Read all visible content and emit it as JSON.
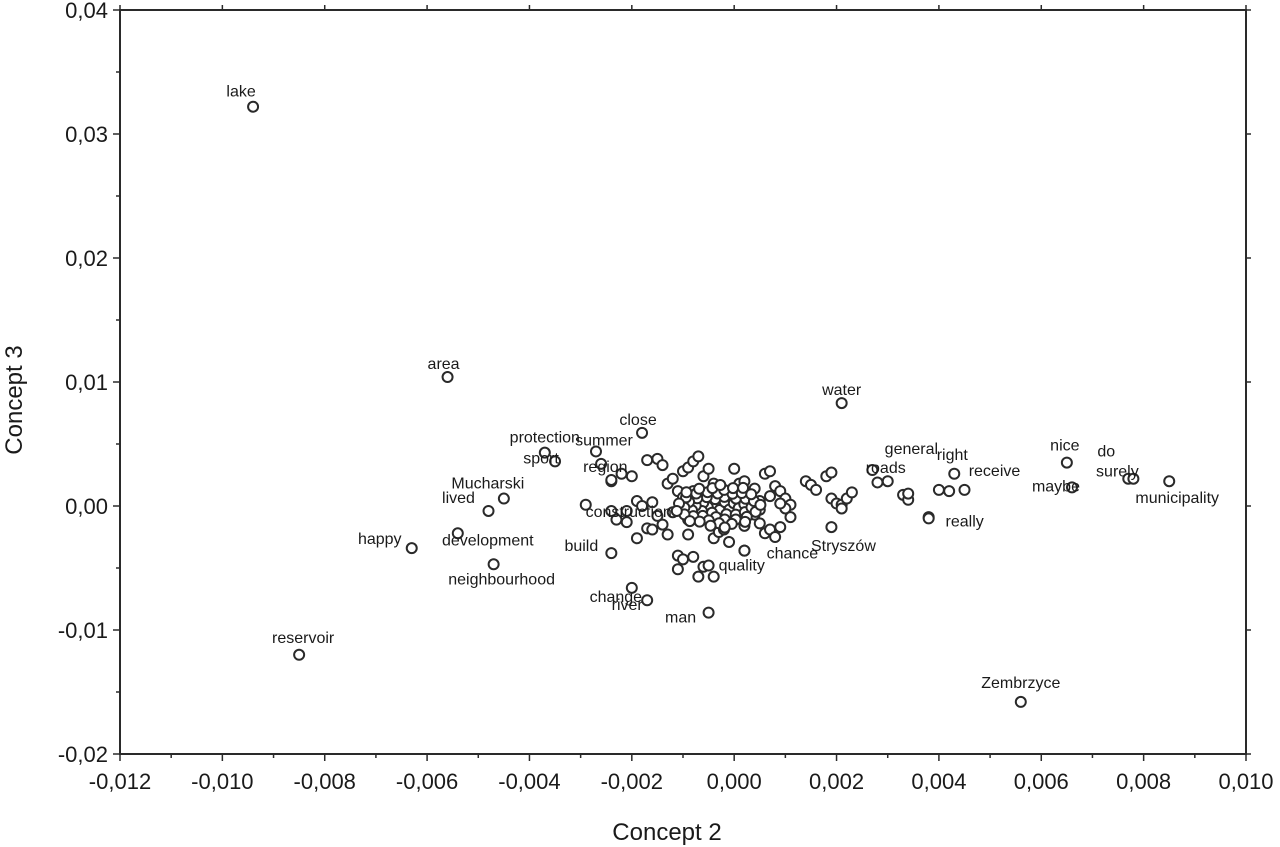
{
  "chart_data": {
    "type": "scatter",
    "title": "",
    "xlabel": "Concept 2",
    "ylabel": "Concept 3",
    "xlim": [
      -0.012,
      0.01
    ],
    "ylim": [
      -0.02,
      0.04
    ],
    "grid": false,
    "x_ticks": [
      -0.012,
      -0.01,
      -0.008,
      -0.006,
      -0.004,
      -0.002,
      0.0,
      0.002,
      0.004,
      0.006,
      0.008,
      0.01
    ],
    "x_tick_labels": [
      "-0,012",
      "-0,010",
      "-0,008",
      "-0,006",
      "-0,004",
      "-0,002",
      "0,000",
      "0,002",
      "0,004",
      "0,006",
      "0,008",
      "0,010"
    ],
    "y_ticks": [
      -0.02,
      -0.01,
      0.0,
      0.01,
      0.02,
      0.03,
      0.04
    ],
    "y_tick_labels": [
      "-0,02",
      "-0,01",
      "0,00",
      "0,01",
      "0,02",
      "0,03",
      "0,04"
    ],
    "labeled_points": [
      {
        "label": "lake",
        "x": -0.0094,
        "y": 0.0322
      },
      {
        "label": "area",
        "x": -0.0056,
        "y": 0.0104
      },
      {
        "label": "water",
        "x": 0.0021,
        "y": 0.0083
      },
      {
        "label": "close",
        "x": -0.0018,
        "y": 0.0059
      },
      {
        "label": "protection",
        "x": -0.0037,
        "y": 0.0043
      },
      {
        "label": "summer",
        "x": -0.0027,
        "y": 0.0044
      },
      {
        "label": "sport",
        "x": -0.0035,
        "y": 0.0036
      },
      {
        "label": "Mucharski",
        "x": -0.0045,
        "y": 0.0006
      },
      {
        "label": "lived",
        "x": -0.0048,
        "y": -0.0004
      },
      {
        "label": "region",
        "x": -0.0024,
        "y": 0.0021
      },
      {
        "label": "construction",
        "x": -0.0021,
        "y": -0.0004
      },
      {
        "label": "development",
        "x": -0.0054,
        "y": -0.0022
      },
      {
        "label": "happy",
        "x": -0.0063,
        "y": -0.0034
      },
      {
        "label": "build",
        "x": -0.0024,
        "y": -0.0038
      },
      {
        "label": "neighbourhood",
        "x": -0.0047,
        "y": -0.0047
      },
      {
        "label": "change",
        "x": -0.002,
        "y": -0.0066
      },
      {
        "label": "river",
        "x": -0.0017,
        "y": -0.0076
      },
      {
        "label": "man",
        "x": -0.0005,
        "y": -0.0086
      },
      {
        "label": "quality",
        "x": -0.0004,
        "y": -0.0057
      },
      {
        "label": "chance",
        "x": 0.0002,
        "y": -0.0036
      },
      {
        "label": "Stryszów",
        "x": 0.0019,
        "y": -0.0017
      },
      {
        "label": "general",
        "x": 0.0027,
        "y": 0.0029
      },
      {
        "label": "roads",
        "x": 0.003,
        "y": 0.002
      },
      {
        "label": "right",
        "x": 0.0043,
        "y": 0.0026
      },
      {
        "label": "receive",
        "x": 0.0045,
        "y": 0.0013
      },
      {
        "label": "really",
        "x": 0.0038,
        "y": -0.001
      },
      {
        "label": "nice",
        "x": 0.0065,
        "y": 0.0035
      },
      {
        "label": "maybe",
        "x": 0.0066,
        "y": 0.0015
      },
      {
        "label": "do",
        "x": 0.0077,
        "y": 0.0022
      },
      {
        "label": "surely",
        "x": 0.0078,
        "y": 0.0022
      },
      {
        "label": "municipality",
        "x": 0.0085,
        "y": 0.002
      },
      {
        "label": "reservoir",
        "x": -0.0085,
        "y": -0.012
      },
      {
        "label": "Zembrzyce",
        "x": 0.0056,
        "y": -0.0158
      }
    ],
    "unlabeled_points": [
      [
        -0.0026,
        0.0034
      ],
      [
        -0.0024,
        0.002
      ],
      [
        -0.0022,
        0.0026
      ],
      [
        -0.002,
        0.0024
      ],
      [
        -0.0019,
        0.0004
      ],
      [
        -0.0018,
        0.0
      ],
      [
        -0.0017,
        0.0037
      ],
      [
        -0.0016,
        0.0003
      ],
      [
        -0.0015,
        0.0038
      ],
      [
        -0.0014,
        0.0033
      ],
      [
        -0.0013,
        0.0018
      ],
      [
        -0.0012,
        0.0022
      ],
      [
        -0.0011,
        0.0012
      ],
      [
        -0.001,
        0.0028
      ],
      [
        -0.0009,
        0.0031
      ],
      [
        -0.0008,
        0.0036
      ],
      [
        -0.0007,
        0.004
      ],
      [
        -0.0006,
        0.0024
      ],
      [
        -0.0005,
        0.003
      ],
      [
        -0.0004,
        0.0018
      ],
      [
        -0.0003,
        0.0012
      ],
      [
        -0.0002,
        0.0006
      ],
      [
        -0.0001,
        0.0002
      ],
      [
        0.0,
        0.003
      ],
      [
        0.0001,
        0.0018
      ],
      [
        0.0002,
        0.002
      ],
      [
        0.0003,
        0.001
      ],
      [
        0.0004,
        0.0014
      ],
      [
        0.0005,
        0.0004
      ],
      [
        0.0006,
        0.0026
      ],
      [
        0.0007,
        0.0028
      ],
      [
        0.0008,
        0.0016
      ],
      [
        0.0009,
        0.0012
      ],
      [
        0.001,
        0.0006
      ],
      [
        0.0011,
        0.0001
      ],
      [
        0.0014,
        0.002
      ],
      [
        0.0015,
        0.0017
      ],
      [
        0.0016,
        0.0013
      ],
      [
        0.0018,
        0.0024
      ],
      [
        0.0019,
        0.0027
      ],
      [
        0.0019,
        0.0006
      ],
      [
        0.002,
        0.0002
      ],
      [
        0.0021,
        0.0001
      ],
      [
        0.0022,
        0.0006
      ],
      [
        0.0023,
        0.0011
      ],
      [
        0.0028,
        0.0019
      ],
      [
        0.0033,
        0.0009
      ],
      [
        0.0034,
        0.0005
      ],
      [
        0.0034,
        0.001
      ],
      [
        0.004,
        0.0013
      ],
      [
        0.0042,
        0.0012
      ],
      [
        -0.0023,
        -0.0011
      ],
      [
        -0.0021,
        -0.0013
      ],
      [
        -0.0019,
        -0.0026
      ],
      [
        -0.0017,
        -0.0018
      ],
      [
        -0.0016,
        -0.0019
      ],
      [
        -0.0014,
        -0.0015
      ],
      [
        -0.0013,
        -0.0023
      ],
      [
        -0.0011,
        -0.004
      ],
      [
        -0.0011,
        -0.0051
      ],
      [
        -0.001,
        -0.0043
      ],
      [
        -0.0009,
        -0.0023
      ],
      [
        -0.0008,
        -0.0041
      ],
      [
        -0.0007,
        -0.0057
      ],
      [
        -0.0006,
        -0.0049
      ],
      [
        -0.0005,
        -0.0048
      ],
      [
        -0.0004,
        -0.0026
      ],
      [
        -0.0003,
        -0.0021
      ],
      [
        -0.0002,
        -0.0019
      ],
      [
        -0.0001,
        -0.0029
      ],
      [
        0.0001,
        -0.001
      ],
      [
        0.0002,
        -0.0016
      ],
      [
        0.0002,
        -0.0036
      ],
      [
        0.0004,
        -0.0007
      ],
      [
        0.0005,
        -0.0014
      ],
      [
        0.0006,
        -0.0022
      ],
      [
        0.0007,
        -0.0019
      ],
      [
        0.0008,
        -0.0025
      ],
      [
        0.0009,
        -0.0017
      ],
      [
        0.001,
        -0.0002
      ],
      [
        0.0011,
        -0.0009
      ],
      [
        0.0021,
        -0.0002
      ],
      [
        0.0038,
        -0.0009
      ],
      [
        -0.0029,
        0.0001
      ],
      [
        -0.0024,
        -0.0004
      ],
      [
        -0.0015,
        -0.0008
      ],
      [
        -0.0012,
        -0.0005
      ],
      [
        -0.0009,
        0.0003
      ],
      [
        -0.0008,
        -0.0003
      ],
      [
        -0.0007,
        0.0005
      ],
      [
        -0.0006,
        -0.0006
      ],
      [
        -0.0005,
        0.0002
      ],
      [
        -0.0004,
        -0.0002
      ],
      [
        -0.0003,
        0.0004
      ],
      [
        -0.0002,
        -0.0004
      ],
      [
        -0.0001,
        0.0
      ],
      [
        0.0,
        0.0003
      ],
      [
        0.0001,
        -0.0003
      ],
      [
        -0.0004,
        0.0009
      ],
      [
        -0.0006,
        0.001
      ],
      [
        -0.0008,
        0.0012
      ],
      [
        -0.0003,
        -0.001
      ],
      [
        -0.0005,
        -0.0012
      ],
      [
        -0.0007,
        -0.0009
      ],
      [
        -0.0002,
        0.0008
      ],
      [
        0.0,
        -0.0006
      ],
      [
        -0.0009,
        -0.0011
      ],
      [
        -0.001,
        0.0007
      ],
      [
        0.0009,
        0.0002
      ],
      [
        0.0007,
        0.0008
      ],
      [
        0.0005,
        -0.0003
      ]
    ]
  }
}
